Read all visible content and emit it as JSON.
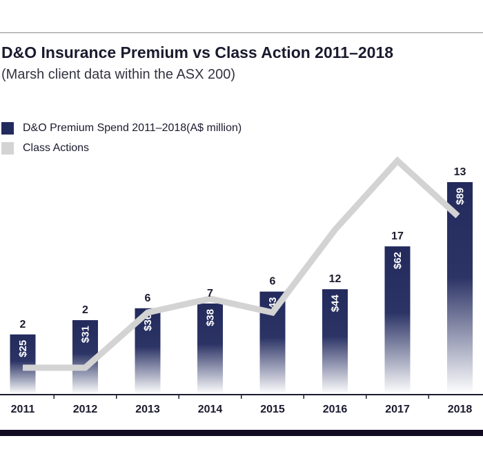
{
  "chart_data": {
    "type": "bar",
    "title": "D&O Insurance Premium vs Class Action 2011–2018",
    "subtitle": "(Marsh client data within the ASX 200)",
    "categories": [
      "2011",
      "2012",
      "2013",
      "2014",
      "2015",
      "2016",
      "2017",
      "2018"
    ],
    "series": [
      {
        "name": "D&O Premium Spend 2011–2018(A$ million)",
        "kind": "bar",
        "values": [
          25,
          31,
          36,
          38,
          43,
          44,
          62,
          89
        ],
        "value_labels": [
          "$25",
          "$31",
          "$36",
          "$38",
          "$43",
          "$44",
          "$62",
          "$89"
        ],
        "color": "#232a5c"
      },
      {
        "name": "Class Actions",
        "kind": "line",
        "values": [
          2,
          2,
          6,
          7,
          6,
          12,
          17,
          13
        ],
        "color": "#d3d3d3"
      }
    ],
    "legend": "top-left",
    "grid": false
  }
}
